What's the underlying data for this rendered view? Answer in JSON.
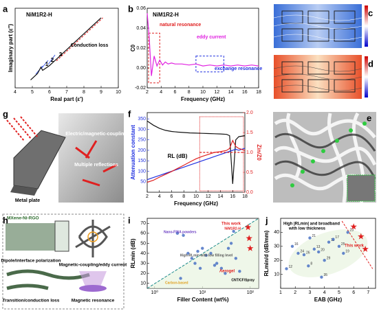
{
  "panels": [
    "a",
    "b",
    "c",
    "d",
    "e",
    "f",
    "g",
    "h",
    "i",
    "j"
  ],
  "chart_data": [
    {
      "type": "line",
      "xlabel": "Real part (ε')",
      "ylabel": "Imaginary part (ε'')",
      "annotations": [
        "NiM1R2-H",
        "1",
        "2",
        "3",
        "Conduction loss"
      ],
      "xlim": [
        4,
        10
      ],
      "xticks": [
        4,
        5,
        6,
        7,
        8,
        9,
        10
      ],
      "ylim": [
        0,
        10
      ],
      "series": [
        {
          "color": "#111111",
          "x": [
            4.9,
            5.1,
            5.3,
            5.5,
            5.6,
            5.8,
            6.0,
            6.3,
            6.6,
            7.0,
            7.5,
            8.0,
            8.5,
            9.0
          ],
          "values": [
            1.0,
            1.4,
            1.8,
            2.6,
            2.2,
            2.5,
            2.8,
            3.4,
            4.0,
            4.8,
            5.8,
            6.8,
            7.8,
            8.8
          ]
        },
        {
          "color": "#e03030",
          "dashed": true,
          "x": [
            6.4,
            7.0,
            7.6,
            8.2,
            8.8,
            9.1
          ],
          "values": [
            3.4,
            4.6,
            5.8,
            7.0,
            8.2,
            8.8
          ]
        }
      ]
    },
    {
      "type": "line",
      "xlabel": "Frequency (GHz)",
      "ylabel": "C0",
      "annotations": [
        "NiM1R2-H",
        "natural resonance",
        "eddy current",
        "exchange resonance"
      ],
      "xlim": [
        2,
        18
      ],
      "xticks": [
        2,
        4,
        6,
        8,
        10,
        12,
        14,
        16,
        18
      ],
      "ylim": [
        -0.02,
        0.06
      ],
      "yticks": [
        -0.02,
        {
          "value": 0,
          "label": "0.00"
        },
        0.02,
        0.04,
        0.06
      ],
      "series": [
        {
          "color": "#e020e0",
          "x": [
            2,
            2.3,
            2.6,
            3,
            3.4,
            3.8,
            4.2,
            4.6,
            5,
            5.5,
            6,
            7,
            8,
            9,
            10,
            11,
            12,
            13,
            14,
            15,
            16,
            17,
            18
          ],
          "values": [
            0.055,
            0.03,
            -0.008,
            0.012,
            0.002,
            0.008,
            0.003,
            0.006,
            0.004,
            0.005,
            0.004,
            0.004,
            0.003,
            0.004,
            0.002,
            0.003,
            0.002,
            0.003,
            0.002,
            0.003,
            0.002,
            0.003,
            0.002
          ]
        }
      ]
    },
    {
      "type": "line",
      "xlabel": "Frequency (GHz)",
      "ylabel": "Attenuation constant",
      "y2label": "Zin/Z0",
      "annotations": [
        "RL (dB)"
      ],
      "xlim": [
        2,
        18
      ],
      "xticks": [
        2,
        4,
        6,
        8,
        10,
        12,
        14,
        16,
        18
      ],
      "ylim": [
        0,
        380
      ],
      "yticks": [
        50,
        100,
        150,
        200,
        250,
        300,
        350
      ],
      "y2lim": [
        0,
        2
      ],
      "y2ticks": [
        {
          "value": 0,
          "label": "0.0"
        },
        0.5,
        {
          "value": 1,
          "label": "1.0"
        },
        1.5,
        {
          "value": 2,
          "label": "2.0"
        }
      ],
      "series": [
        {
          "color": "#111111",
          "x": [
            2,
            3,
            4,
            5,
            6,
            7,
            8,
            9,
            10,
            11,
            12,
            13,
            14,
            15,
            15.5,
            16,
            16.5,
            17,
            18
          ],
          "values": [
            340,
            320,
            305,
            295,
            290,
            287,
            285,
            283,
            282,
            281,
            280,
            279,
            278,
            276,
            270,
            40,
            250,
            265,
            270
          ]
        },
        {
          "color": "#2030e0",
          "x": [
            2,
            3,
            4,
            5,
            6,
            7,
            8,
            9,
            10,
            11,
            12,
            13,
            14,
            15,
            15.5,
            16,
            16.5,
            17,
            18
          ],
          "values": [
            60,
            70,
            80,
            90,
            100,
            110,
            120,
            130,
            140,
            150,
            160,
            170,
            180,
            190,
            195,
            200,
            205,
            200,
            210
          ]
        },
        {
          "color": "#e02020",
          "axis": "y2",
          "x": [
            2,
            3,
            4,
            5,
            6,
            7,
            8,
            9,
            10,
            11,
            12,
            13,
            14,
            15,
            15.5,
            16,
            16.5,
            17,
            18
          ],
          "values": [
            0.25,
            0.3,
            0.38,
            0.45,
            0.52,
            0.6,
            0.68,
            0.76,
            0.84,
            0.9,
            0.95,
            1.0,
            1.02,
            1.05,
            1.1,
            1.3,
            1.15,
            1.1,
            1.05
          ]
        },
        {
          "color": "#e02020",
          "axis": "y2",
          "dashed": true,
          "x": [
            10.6,
            18
          ],
          "values": [
            1.0,
            1.0
          ]
        }
      ]
    },
    {
      "type": "scatter",
      "xlabel": "Filler Content (wt%)",
      "ylabel": "RLmin (dB)",
      "xlog": true,
      "annotations": [
        "This work",
        "NiM1R2-H",
        "Nano-FINA powders",
        "High-RLmin with low filling level",
        "Aerogel",
        "Carbon-based",
        "CNT/CF/Spray"
      ],
      "xlim": [
        0.7,
        150
      ],
      "xticks": [
        {
          "value": 1,
          "label": "10⁰"
        },
        {
          "value": 10,
          "label": "10¹"
        },
        {
          "value": 100,
          "label": "10²"
        }
      ],
      "ylim": [
        5,
        75
      ],
      "yticks": [
        10,
        20,
        30,
        40,
        50,
        60,
        70
      ],
      "series": [
        {
          "color": "#4a72c4",
          "x": [
            3,
            4,
            5,
            6,
            7,
            8,
            10,
            12,
            15,
            20,
            25,
            30,
            40,
            50,
            3.5,
            9,
            18,
            35,
            60,
            45
          ],
          "values": [
            60,
            58,
            40,
            35,
            30,
            42,
            45,
            38,
            40,
            30,
            25,
            20,
            50,
            35,
            15,
            25,
            28,
            45,
            22,
            62
          ]
        },
        {
          "name": "This work",
          "color": "#e02020",
          "marker": "star",
          "x": [
            90,
            95,
            100
          ],
          "values": [
            66,
            55,
            45
          ]
        }
      ]
    },
    {
      "type": "scatter",
      "xlabel": "EAB (GHz)",
      "ylabel": "RLmin/d (dB/mm)",
      "annotations": [
        "High |RLmin| and broadband",
        "with low thickness",
        "This work"
      ],
      "xlim": [
        1,
        7.5
      ],
      "xticks": [
        1,
        2,
        3,
        4,
        5,
        6,
        7
      ],
      "ylim": [
        0,
        50
      ],
      "yticks": [
        10,
        20,
        30,
        40
      ],
      "series": [
        {
          "color": "#4a72c4",
          "x": [
            1.4,
            1.8,
            2.2,
            2.6,
            3,
            3.3,
            3.6,
            4,
            4.3,
            4.6,
            5,
            5.3,
            5.6,
            2.9,
            3.8
          ],
          "values": [
            14,
            30,
            25,
            24,
            36,
            28,
            26,
            20,
            33,
            35,
            30,
            25,
            40,
            16,
            8
          ],
          "labels": [
            "12",
            "16",
            "24",
            "26",
            "21",
            "13",
            "20",
            "29",
            "11",
            "17",
            "25",
            "19",
            "23",
            "8",
            "35"
          ]
        },
        {
          "color": "#e02020",
          "marker": "star",
          "x": [
            6.0,
            6.5,
            6.8
          ],
          "values": [
            44,
            37,
            28
          ]
        }
      ]
    }
  ],
  "figures": {
    "g": [
      "Electric/magnetic-coupling",
      "Multiple reflections",
      "Metal plate"
    ],
    "h": [
      "MXene-Ni-RGO",
      "Dipole/interface polarization",
      "Magnetic-coupling/eddy current",
      "Transition/conduction loss",
      "Magnetic resonance"
    ]
  }
}
